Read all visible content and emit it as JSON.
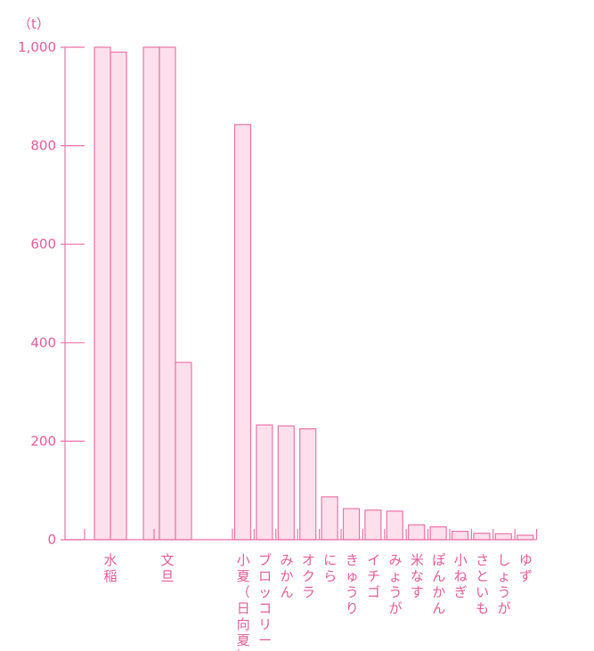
{
  "chart_data": {
    "type": "bar",
    "unit_label": "（t）",
    "ylim": [
      0,
      1000
    ],
    "y_ticks": [
      0,
      200,
      400,
      600,
      800,
      1000
    ],
    "y_tick_labels": [
      "0",
      "200",
      "400",
      "600",
      "800",
      "1,000"
    ],
    "categories": [
      "水稲",
      "文旦",
      "小夏（日向夏）",
      "ブロッコリー",
      "みかん",
      "オクラ",
      "にら",
      "きゅうり",
      "イチゴ",
      "みょうが",
      "米なす",
      "ぽんかん",
      "小ねぎ",
      "さといも",
      "しょうが",
      "ゆず"
    ],
    "values": [
      [
        1000,
        990
      ],
      [
        1000,
        1000,
        360
      ],
      [
        843
      ],
      [
        233
      ],
      [
        231
      ],
      [
        225
      ],
      [
        87
      ],
      [
        63
      ],
      [
        60
      ],
      [
        58
      ],
      [
        30
      ],
      [
        26
      ],
      [
        17
      ],
      [
        13
      ],
      [
        12
      ],
      [
        9
      ]
    ],
    "colors": {
      "bar_fill": "#fde0ec",
      "bar_stroke": "#ea74a8",
      "text": "#e35d9a"
    }
  }
}
